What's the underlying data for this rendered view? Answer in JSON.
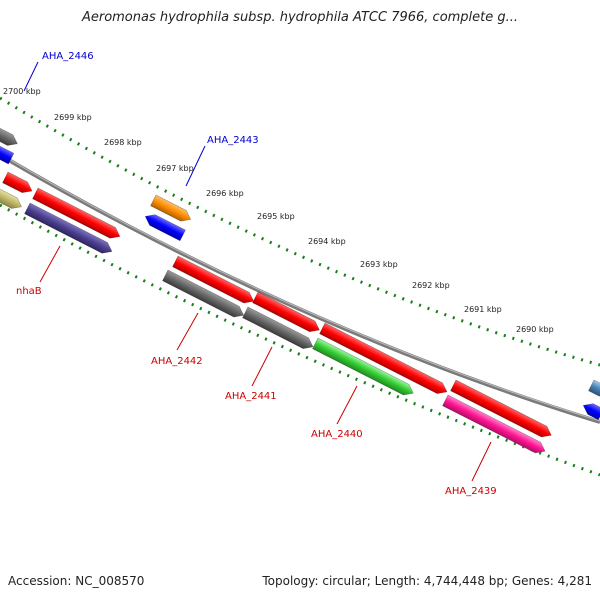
{
  "title": "Aeromonas hydrophila subsp. hydrophila ATCC 7966, complete g...",
  "footer": {
    "accession": "Accession: NC_008570",
    "topology": "Topology: circular; Length: 4,744,448 bp; Genes: 4,281"
  },
  "ticks": [
    "2700 kbp",
    "2699 kbp",
    "2698 kbp",
    "2697 kbp",
    "2696 kbp",
    "2695 kbp",
    "2694 kbp",
    "2693 kbp",
    "2692 kbp",
    "2691 kbp",
    "2690 kbp"
  ],
  "gene_labels_top": [
    "AHA_2446",
    "AHA_2443"
  ],
  "gene_labels_bottom": [
    "nhaB",
    "AHA_2442",
    "AHA_2441",
    "AHA_2440",
    "AHA_2439"
  ],
  "colors": {
    "top_label": "#0000cc",
    "bottom_label": "#cc0000",
    "tick_ring": "#1a7f1a",
    "backbone": "#7f7f7f",
    "cds_red": "#ff0000",
    "cds_blue": "#0000ff",
    "cds_gray": "#666666",
    "cds_green": "#33cc33",
    "cds_pink": "#ff1493",
    "cds_orange": "#ff8c00",
    "cds_purple": "#4b3f8f",
    "cds_olive": "#bdb76b",
    "cds_lightblue": "#4682b4"
  }
}
